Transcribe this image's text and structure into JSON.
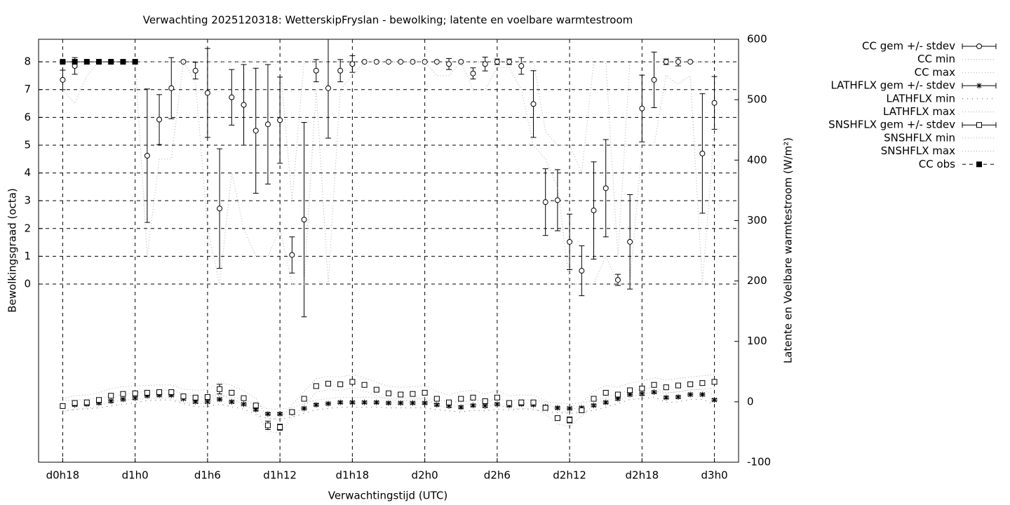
{
  "chart_data": {
    "type": "errorbar-line",
    "title": "Verwachting 2025120318: WetterskipFryslan - bewolking; latente en voelbare warmtestroom",
    "xlabel": "Verwachtingstijd (UTC)",
    "ylabel": "Bewolkingsgraad (octa)",
    "y2label": "Latente en Voelbare warmtestroom (W/m²)",
    "grid": true,
    "legend": "outside-right",
    "xlim": [
      16,
      74
    ],
    "xticks": [
      {
        "value": 18,
        "label": "d0h18"
      },
      {
        "value": 24,
        "label": "d1h0"
      },
      {
        "value": 30,
        "label": "d1h6"
      },
      {
        "value": 36,
        "label": "d1h12"
      },
      {
        "value": 42,
        "label": "d1h18"
      },
      {
        "value": 48,
        "label": "d2h0"
      },
      {
        "value": 54,
        "label": "d2h6"
      },
      {
        "value": 60,
        "label": "d2h12"
      },
      {
        "value": 66,
        "label": "d2h18"
      },
      {
        "value": 72,
        "label": "d3h0"
      }
    ],
    "ylim": [
      -6.41,
      8.81
    ],
    "yticks": [
      0,
      1,
      2,
      3,
      4,
      5,
      6,
      7,
      8
    ],
    "y2lim": [
      -100,
      600
    ],
    "y2ticks": [
      -100,
      0,
      100,
      200,
      300,
      400,
      500,
      600
    ],
    "x": [
      18,
      19,
      20,
      21,
      22,
      23,
      24,
      25,
      26,
      27,
      28,
      29,
      30,
      31,
      32,
      33,
      34,
      35,
      36,
      37,
      38,
      39,
      40,
      41,
      42,
      43,
      44,
      45,
      46,
      47,
      48,
      49,
      50,
      51,
      52,
      53,
      54,
      55,
      56,
      57,
      58,
      59,
      60,
      61,
      62,
      63,
      64,
      65,
      66,
      67,
      68,
      69,
      70,
      71,
      72
    ],
    "series": [
      {
        "name": "CC gem +/- stdev",
        "color": "#000000",
        "line": "none",
        "marker": "circle",
        "values": [
          7.35,
          7.85,
          8,
          8,
          8,
          8,
          8,
          4.62,
          5.92,
          7.05,
          8,
          7.68,
          6.88,
          2.72,
          6.72,
          6.45,
          5.52,
          5.75,
          5.9,
          1.05,
          2.32,
          7.68,
          7.05,
          7.68,
          7.92,
          8,
          8,
          8,
          8,
          8,
          8,
          8,
          7.92,
          8,
          7.58,
          7.92,
          8,
          8,
          7.85,
          6.48,
          2.95,
          3.02,
          1.52,
          0.48,
          2.65,
          3.45,
          0.15,
          1.52,
          6.32,
          7.35,
          8,
          8,
          8,
          4.7,
          6.52
        ],
        "error": [
          0.35,
          0.3,
          0,
          0,
          0,
          0,
          0,
          2.4,
          0.9,
          1.1,
          0,
          0.3,
          1.6,
          2.15,
          1.0,
          1.45,
          2.25,
          2.15,
          1.55,
          0.65,
          3.5,
          0.4,
          1.8,
          0.4,
          0.3,
          0,
          0,
          0,
          0,
          0,
          0,
          0,
          0.2,
          0,
          0.2,
          0.25,
          0.1,
          0.1,
          0.3,
          1.2,
          1.2,
          1.1,
          1.0,
          0.9,
          1.75,
          1.75,
          0.2,
          1.7,
          1.2,
          1.0,
          0.1,
          0.15,
          0,
          2.15,
          0.95
        ]
      },
      {
        "name": "CC min",
        "color": "#aaaaaa",
        "line": "dotted",
        "marker": "none",
        "values": [
          7,
          6.5,
          7.5,
          8,
          8,
          8,
          8,
          1,
          4.5,
          4.5,
          8,
          7.3,
          2,
          0,
          4,
          2,
          1,
          1,
          2,
          0,
          0,
          7,
          0,
          7,
          7.5,
          8,
          8,
          8,
          8,
          8,
          8,
          7.5,
          7.5,
          8,
          7,
          7,
          7.8,
          7.8,
          7,
          5,
          4.5,
          3.5,
          0,
          0,
          0,
          1,
          0,
          0,
          5,
          5,
          7.5,
          7.2,
          7.5,
          0,
          5.5
        ]
      },
      {
        "name": "CC max",
        "color": "#aaaaaa",
        "line": "dotted",
        "marker": "none",
        "values": [
          8,
          8,
          8,
          8,
          8,
          8,
          8,
          8,
          8,
          8,
          8,
          8,
          8,
          8,
          8,
          8,
          8,
          8,
          8,
          3,
          8,
          8,
          8,
          8,
          8,
          8,
          8,
          8,
          8,
          8,
          8,
          8,
          8,
          8,
          8,
          8,
          8,
          8,
          8,
          8,
          5.5,
          5,
          5,
          4,
          8,
          8,
          1,
          8,
          8,
          8,
          8,
          8,
          8,
          8,
          8
        ]
      },
      {
        "name": "LATHFLX gem +/- stdev",
        "color": "#000000",
        "line": "none",
        "marker": "star",
        "axis": "y2",
        "values": [
          -7,
          -5,
          -4,
          -2,
          1,
          4,
          6,
          10,
          11,
          11,
          5,
          0,
          0,
          4,
          0,
          -4,
          -13,
          -20,
          -20,
          -18,
          -11,
          -5,
          -3,
          -1,
          -1,
          -1,
          -1,
          -2,
          -2,
          -2,
          -2,
          -5,
          -7,
          -9,
          -6,
          -7,
          -4,
          -6,
          -4,
          -5,
          -8,
          -10,
          -11,
          -10,
          -6,
          -1,
          5,
          12,
          13,
          16,
          7,
          8,
          12,
          12,
          3
        ],
        "error": [
          2,
          2,
          2,
          2,
          2,
          2,
          2,
          2,
          2,
          2,
          2,
          2,
          2,
          2,
          2,
          2,
          2,
          2,
          2,
          2,
          2,
          2,
          2,
          2,
          2,
          2,
          2,
          2,
          2,
          2,
          2,
          2,
          2,
          2,
          2,
          2,
          2,
          2,
          2,
          2,
          2,
          2,
          2,
          2,
          2,
          2,
          2,
          2,
          2,
          2,
          2,
          2,
          2,
          2,
          2
        ]
      },
      {
        "name": "LATHFLX min",
        "color": "#555555",
        "line": "sparse",
        "marker": "none",
        "axis": "y2",
        "values": [
          -15,
          -13,
          -12,
          -10,
          -7,
          -4,
          -2,
          2,
          3,
          3,
          -3,
          -8,
          -8,
          -4,
          -8,
          -12,
          -21,
          -28,
          -28,
          -26,
          -19,
          -13,
          -11,
          -9,
          -9,
          -9,
          -9,
          -10,
          -10,
          -10,
          -10,
          -13,
          -15,
          -17,
          -14,
          -15,
          -12,
          -14,
          -12,
          -13,
          -16,
          -18,
          -19,
          -18,
          -14,
          -9,
          -3,
          4,
          5,
          8,
          -1,
          0,
          4,
          4,
          -5
        ]
      },
      {
        "name": "LATHFLX max",
        "color": "#aaaaaa",
        "line": "dotted",
        "marker": "none",
        "axis": "y2",
        "values": [
          1,
          3,
          4,
          6,
          9,
          12,
          14,
          18,
          19,
          19,
          13,
          8,
          8,
          12,
          8,
          4,
          -5,
          -12,
          -12,
          -10,
          -3,
          3,
          5,
          7,
          7,
          7,
          7,
          6,
          6,
          6,
          6,
          3,
          1,
          -1,
          2,
          1,
          4,
          2,
          4,
          3,
          0,
          -2,
          -3,
          -2,
          2,
          7,
          13,
          20,
          21,
          24,
          15,
          16,
          20,
          20,
          11
        ]
      },
      {
        "name": "SNSHFLX gem +/- stdev",
        "color": "#000000",
        "line": "none",
        "marker": "square",
        "axis": "y2",
        "values": [
          -7,
          -2,
          -1,
          3,
          10,
          13,
          14,
          15,
          16,
          16,
          9,
          7,
          8,
          21,
          15,
          6,
          -6,
          -39,
          -42,
          -17,
          5,
          26,
          30,
          29,
          33,
          28,
          20,
          14,
          12,
          13,
          15,
          5,
          -1,
          5,
          7,
          1,
          7,
          -2,
          -1,
          -1,
          -10,
          -27,
          -30,
          -14,
          5,
          15,
          12,
          19,
          22,
          28,
          24,
          27,
          29,
          31,
          33
        ],
        "error": [
          3,
          3,
          3,
          3,
          3,
          3,
          3,
          3,
          3,
          3,
          3,
          3,
          3,
          8,
          3,
          3,
          3,
          7,
          5,
          3,
          3,
          3,
          3,
          3,
          3,
          3,
          3,
          3,
          3,
          3,
          3,
          3,
          3,
          3,
          3,
          3,
          3,
          3,
          3,
          3,
          3,
          3,
          5,
          3,
          3,
          3,
          3,
          3,
          3,
          3,
          3,
          3,
          3,
          3,
          3
        ]
      },
      {
        "name": "SNSHFLX min",
        "color": "#aaaaaa",
        "line": "dotted",
        "marker": "none",
        "axis": "y2",
        "values": [
          -17,
          -12,
          -11,
          -7,
          0,
          3,
          4,
          5,
          6,
          6,
          -1,
          -3,
          -2,
          11,
          5,
          -4,
          -16,
          -49,
          -52,
          -27,
          -5,
          16,
          20,
          19,
          23,
          18,
          10,
          4,
          2,
          3,
          5,
          -5,
          -11,
          -5,
          -3,
          -9,
          -3,
          -12,
          -11,
          -11,
          -20,
          -37,
          -40,
          -24,
          -5,
          5,
          2,
          9,
          12,
          18,
          14,
          17,
          19,
          21,
          23
        ]
      },
      {
        "name": "SNSHFLX max",
        "color": "#aaaaaa",
        "line": "dotted",
        "marker": "none",
        "axis": "y2",
        "values": [
          5,
          10,
          11,
          15,
          22,
          25,
          26,
          27,
          28,
          28,
          21,
          19,
          20,
          33,
          27,
          18,
          6,
          -27,
          -30,
          -5,
          17,
          38,
          42,
          41,
          45,
          40,
          32,
          26,
          24,
          25,
          27,
          17,
          11,
          17,
          19,
          13,
          19,
          10,
          11,
          11,
          2,
          -15,
          -18,
          -2,
          17,
          27,
          24,
          31,
          34,
          40,
          36,
          39,
          41,
          43,
          45
        ]
      },
      {
        "name": "CC obs",
        "color": "#000000",
        "line": "dashed",
        "marker": "filled-square",
        "values": [
          8,
          8,
          8,
          8,
          8,
          8,
          8,
          null,
          null,
          null,
          null,
          null,
          null,
          null,
          null,
          null,
          null,
          null,
          null,
          null,
          null,
          null,
          null,
          null,
          null,
          null,
          null,
          null,
          null,
          null,
          null,
          null,
          null,
          null,
          null,
          null,
          null,
          null,
          null,
          null,
          null,
          null,
          null,
          null,
          null,
          null,
          null,
          null,
          null,
          null,
          null,
          null,
          null,
          null,
          null
        ]
      }
    ]
  }
}
